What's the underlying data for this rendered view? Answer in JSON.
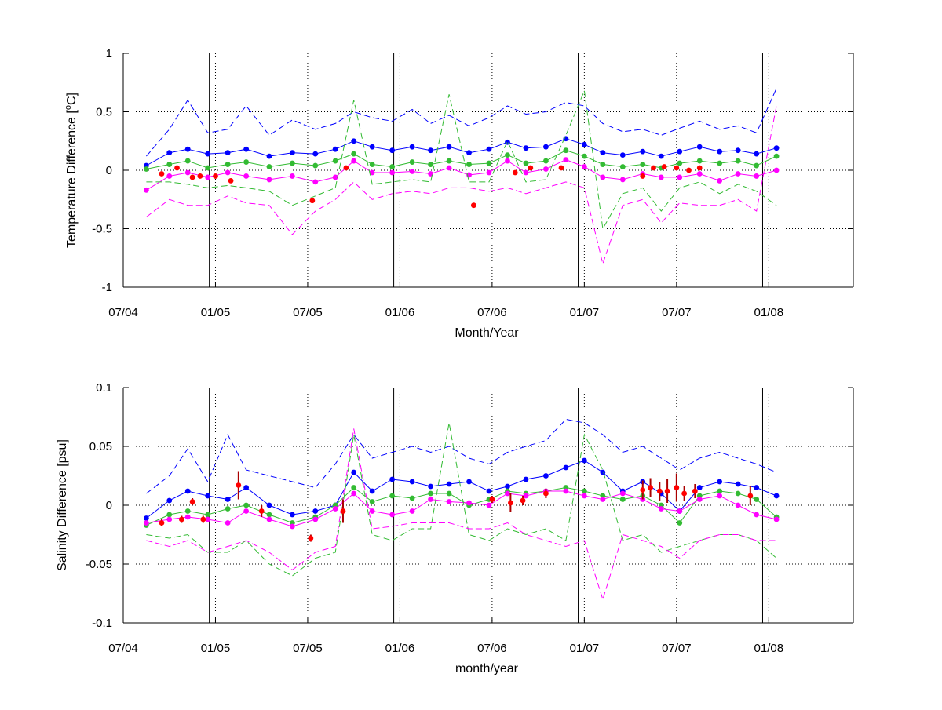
{
  "chart_data": [
    {
      "type": "line",
      "ylabel_main": "Temperature Difference [",
      "ylabel_sup": "o",
      "ylabel_tail": "C]",
      "xlabel": "Month/Year",
      "ylim": [
        -1,
        1
      ],
      "yticks": [
        1,
        0.5,
        0,
        -0.5,
        -1
      ],
      "ytick_labels": [
        "1",
        "0.5",
        "0",
        "-0.5",
        "-1"
      ],
      "xlim": [
        0,
        47.5
      ],
      "xticks": [
        0,
        6,
        12,
        18,
        24,
        30,
        36,
        42
      ],
      "xtick_labels": [
        "07/04",
        "01/05",
        "07/05",
        "01/06",
        "07/06",
        "01/07",
        "07/07",
        "01/08"
      ],
      "vlines": [
        5.6,
        17.6,
        29.6,
        41.6
      ],
      "grid": true,
      "series": [
        {
          "color": "#0000ff",
          "style": "markers-line",
          "x": [
            1.5,
            3,
            4.2,
            5.5,
            6.8,
            8,
            9.5,
            11,
            12.5,
            13.8,
            15,
            16.2,
            17.5,
            18.8,
            20,
            21.2,
            22.5,
            23.8,
            25,
            26.2,
            27.5,
            28.8,
            30,
            31.2,
            32.5,
            33.8,
            35,
            36.2,
            37.5,
            38.8,
            40,
            41.2,
            42.5
          ],
          "y": [
            0.04,
            0.15,
            0.18,
            0.14,
            0.15,
            0.18,
            0.12,
            0.15,
            0.14,
            0.18,
            0.25,
            0.2,
            0.17,
            0.2,
            0.17,
            0.2,
            0.15,
            0.18,
            0.24,
            0.19,
            0.2,
            0.27,
            0.22,
            0.15,
            0.13,
            0.16,
            0.12,
            0.16,
            0.2,
            0.16,
            0.17,
            0.14,
            0.19
          ]
        },
        {
          "color": "#33bb33",
          "style": "markers-line",
          "x": [
            1.5,
            3,
            4.2,
            5.5,
            6.8,
            8,
            9.5,
            11,
            12.5,
            13.8,
            15,
            16.2,
            17.5,
            18.8,
            20,
            21.2,
            22.5,
            23.8,
            25,
            26.2,
            27.5,
            28.8,
            30,
            31.2,
            32.5,
            33.8,
            35,
            36.2,
            37.5,
            38.8,
            40,
            41.2,
            42.5
          ],
          "y": [
            0.01,
            0.05,
            0.08,
            0.02,
            0.05,
            0.07,
            0.03,
            0.06,
            0.04,
            0.08,
            0.14,
            0.05,
            0.03,
            0.07,
            0.05,
            0.08,
            0.05,
            0.06,
            0.13,
            0.06,
            0.08,
            0.17,
            0.12,
            0.05,
            0.03,
            0.05,
            0.02,
            0.06,
            0.08,
            0.06,
            0.08,
            0.04,
            0.12
          ]
        },
        {
          "color": "#ff00ff",
          "style": "markers-line",
          "x": [
            1.5,
            3,
            4.2,
            5.5,
            6.8,
            8,
            9.5,
            11,
            12.5,
            13.8,
            15,
            16.2,
            17.5,
            18.8,
            20,
            21.2,
            22.5,
            23.8,
            25,
            26.2,
            27.5,
            28.8,
            30,
            31.2,
            32.5,
            33.8,
            35,
            36.2,
            37.5,
            38.8,
            40,
            41.2,
            42.5
          ],
          "y": [
            -0.17,
            -0.05,
            -0.02,
            -0.06,
            -0.02,
            -0.05,
            -0.08,
            -0.05,
            -0.1,
            -0.06,
            0.08,
            -0.02,
            -0.02,
            -0.01,
            -0.03,
            0.02,
            -0.04,
            -0.02,
            0.08,
            -0.02,
            0.01,
            0.09,
            0.03,
            -0.06,
            -0.08,
            -0.03,
            -0.06,
            -0.06,
            -0.03,
            -0.09,
            -0.03,
            -0.05,
            0.0
          ]
        },
        {
          "color": "#0000ff",
          "style": "dashed",
          "x": [
            1.5,
            3,
            4.2,
            5.5,
            6.8,
            8,
            9.5,
            11,
            12.5,
            13.8,
            15,
            16.2,
            17.5,
            18.8,
            20,
            21.2,
            22.5,
            23.8,
            25,
            26.2,
            27.5,
            28.8,
            30,
            31.2,
            32.5,
            33.8,
            35,
            36.2,
            37.5,
            38.8,
            40,
            41.2,
            42.5
          ],
          "y": [
            0.12,
            0.35,
            0.6,
            0.32,
            0.35,
            0.55,
            0.3,
            0.43,
            0.35,
            0.4,
            0.5,
            0.45,
            0.42,
            0.52,
            0.4,
            0.47,
            0.38,
            0.45,
            0.55,
            0.48,
            0.5,
            0.58,
            0.55,
            0.4,
            0.33,
            0.35,
            0.3,
            0.36,
            0.42,
            0.35,
            0.38,
            0.32,
            0.7
          ]
        },
        {
          "color": "#33bb33",
          "style": "dashed",
          "x": [
            1.5,
            3,
            4.2,
            5.5,
            6.8,
            8,
            9.5,
            11,
            12.5,
            13.8,
            15,
            16.2,
            17.5,
            18.8,
            20,
            21.2,
            22.5,
            23.8,
            25,
            26.2,
            27.5,
            28.8,
            30,
            31.2,
            32.5,
            33.8,
            35,
            36.2,
            37.5,
            38.8,
            40,
            41.2,
            42.5
          ],
          "y": [
            -0.1,
            -0.1,
            -0.12,
            -0.15,
            -0.13,
            -0.15,
            -0.18,
            -0.3,
            -0.22,
            -0.15,
            0.6,
            -0.12,
            -0.1,
            -0.08,
            -0.1,
            0.65,
            -0.1,
            -0.1,
            0.25,
            -0.1,
            -0.08,
            0.3,
            0.68,
            -0.5,
            -0.2,
            -0.15,
            -0.35,
            -0.15,
            -0.1,
            -0.2,
            -0.12,
            -0.18,
            -0.3
          ]
        },
        {
          "color": "#ff00ff",
          "style": "dashed",
          "x": [
            1.5,
            3,
            4.2,
            5.5,
            6.8,
            8,
            9.5,
            11,
            12.5,
            13.8,
            15,
            16.2,
            17.5,
            18.8,
            20,
            21.2,
            22.5,
            23.8,
            25,
            26.2,
            27.5,
            28.8,
            30,
            31.2,
            32.5,
            33.8,
            35,
            36.2,
            37.5,
            38.8,
            40,
            41.2,
            42.5
          ],
          "y": [
            -0.4,
            -0.25,
            -0.3,
            -0.3,
            -0.22,
            -0.28,
            -0.3,
            -0.55,
            -0.35,
            -0.25,
            -0.1,
            -0.25,
            -0.2,
            -0.18,
            -0.2,
            -0.15,
            -0.15,
            -0.18,
            -0.15,
            -0.2,
            -0.15,
            -0.1,
            -0.15,
            -0.8,
            -0.3,
            -0.25,
            -0.45,
            -0.28,
            -0.3,
            -0.3,
            -0.25,
            -0.35,
            0.55
          ]
        },
        {
          "color": "#ff0000",
          "style": "points",
          "x": [
            2.5,
            3.5,
            4.5,
            5,
            6,
            7,
            12.3,
            14.5,
            22.8,
            25.5,
            26.5,
            28.5,
            33.8,
            34.5,
            35.2,
            36,
            36.8,
            37.5
          ],
          "y": [
            -0.03,
            0.02,
            -0.06,
            -0.05,
            -0.05,
            -0.09,
            -0.26,
            0.02,
            -0.3,
            -0.02,
            0.02,
            0.02,
            -0.05,
            0.02,
            0.03,
            0.02,
            0.0,
            0.02
          ]
        }
      ]
    },
    {
      "type": "line",
      "ylabel": "Salinity Difference [psu]",
      "xlabel": "month/year",
      "ylim": [
        -0.1,
        0.1
      ],
      "yticks": [
        0.1,
        0.05,
        0,
        -0.05,
        -0.1
      ],
      "ytick_labels": [
        "0.1",
        "0.05",
        "0",
        "-0.05",
        "-0.1"
      ],
      "xlim": [
        0,
        47.5
      ],
      "xticks": [
        0,
        6,
        12,
        18,
        24,
        30,
        36,
        42
      ],
      "xtick_labels": [
        "07/04",
        "01/05",
        "07/05",
        "01/06",
        "07/06",
        "01/07",
        "07/07",
        "01/08"
      ],
      "vlines": [
        5.6,
        17.6,
        29.6,
        41.6
      ],
      "grid": true,
      "series": [
        {
          "color": "#0000ff",
          "style": "markers-line",
          "x": [
            1.5,
            3,
            4.2,
            5.5,
            6.8,
            8,
            9.5,
            11,
            12.5,
            13.8,
            15,
            16.2,
            17.5,
            18.8,
            20,
            21.2,
            22.5,
            23.8,
            25,
            26.2,
            27.5,
            28.8,
            30,
            31.2,
            32.5,
            33.8,
            35,
            36.2,
            37.5,
            38.8,
            40,
            41.2,
            42.5
          ],
          "y": [
            -0.011,
            0.004,
            0.012,
            0.008,
            0.005,
            0.015,
            0.0,
            -0.008,
            -0.005,
            0.0,
            0.028,
            0.012,
            0.022,
            0.02,
            0.016,
            0.018,
            0.02,
            0.012,
            0.016,
            0.022,
            0.025,
            0.032,
            0.038,
            0.028,
            0.012,
            0.02,
            0.01,
            -0.005,
            0.015,
            0.02,
            0.018,
            0.015,
            0.008
          ]
        },
        {
          "color": "#33bb33",
          "style": "markers-line",
          "x": [
            1.5,
            3,
            4.2,
            5.5,
            6.8,
            8,
            9.5,
            11,
            12.5,
            13.8,
            15,
            16.2,
            17.5,
            18.8,
            20,
            21.2,
            22.5,
            23.8,
            25,
            26.2,
            27.5,
            28.8,
            30,
            31.2,
            32.5,
            33.8,
            35,
            36.2,
            37.5,
            38.8,
            40,
            41.2,
            42.5
          ],
          "y": [
            -0.017,
            -0.008,
            -0.005,
            -0.008,
            -0.003,
            0.0,
            -0.008,
            -0.015,
            -0.01,
            0.0,
            0.015,
            0.003,
            0.008,
            0.006,
            0.01,
            0.01,
            0.0,
            0.005,
            0.012,
            0.01,
            0.012,
            0.015,
            0.012,
            0.008,
            0.005,
            0.008,
            0.0,
            -0.015,
            0.008,
            0.012,
            0.01,
            0.005,
            -0.01
          ]
        },
        {
          "color": "#ff00ff",
          "style": "markers-line",
          "x": [
            1.5,
            3,
            4.2,
            5.5,
            6.8,
            8,
            9.5,
            11,
            12.5,
            13.8,
            15,
            16.2,
            17.5,
            18.8,
            20,
            21.2,
            22.5,
            23.8,
            25,
            26.2,
            27.5,
            28.8,
            30,
            31.2,
            32.5,
            33.8,
            35,
            36.2,
            37.5,
            38.8,
            40,
            41.2,
            42.5
          ],
          "y": [
            -0.015,
            -0.012,
            -0.01,
            -0.012,
            -0.015,
            -0.005,
            -0.012,
            -0.018,
            -0.012,
            -0.003,
            0.01,
            -0.005,
            -0.008,
            -0.005,
            0.005,
            0.003,
            0.002,
            0.0,
            0.01,
            0.008,
            0.012,
            0.012,
            0.008,
            0.005,
            0.01,
            0.005,
            -0.003,
            -0.005,
            0.005,
            0.008,
            0.0,
            -0.008,
            -0.012
          ]
        },
        {
          "color": "#0000ff",
          "style": "dashed",
          "x": [
            1.5,
            3,
            4.2,
            5.5,
            6.8,
            8,
            9.5,
            11,
            12.5,
            13.8,
            15,
            16.2,
            17.5,
            18.8,
            20,
            21.2,
            22.5,
            23.8,
            25,
            26.2,
            27.5,
            28.8,
            30,
            31.2,
            32.5,
            33.8,
            35,
            36.2,
            37.5,
            38.8,
            40,
            41.2,
            42.5
          ],
          "y": [
            0.01,
            0.025,
            0.048,
            0.02,
            0.06,
            0.03,
            0.025,
            0.02,
            0.015,
            0.035,
            0.06,
            0.04,
            0.045,
            0.05,
            0.045,
            0.05,
            0.04,
            0.035,
            0.045,
            0.05,
            0.055,
            0.073,
            0.07,
            0.06,
            0.045,
            0.05,
            0.04,
            0.03,
            0.04,
            0.045,
            0.04,
            0.035,
            0.028
          ]
        },
        {
          "color": "#33bb33",
          "style": "dashed",
          "x": [
            1.5,
            3,
            4.2,
            5.5,
            6.8,
            8,
            9.5,
            11,
            12.5,
            13.8,
            15,
            16.2,
            17.5,
            18.8,
            20,
            21.2,
            22.5,
            23.8,
            25,
            26.2,
            27.5,
            28.8,
            30,
            31.2,
            32.5,
            33.8,
            35,
            36.2,
            37.5,
            38.8,
            40,
            41.2,
            42.5
          ],
          "y": [
            -0.025,
            -0.028,
            -0.025,
            -0.04,
            -0.04,
            -0.03,
            -0.05,
            -0.06,
            -0.045,
            -0.04,
            0.06,
            -0.025,
            -0.03,
            -0.02,
            -0.02,
            0.07,
            -0.025,
            -0.03,
            -0.02,
            -0.025,
            -0.02,
            -0.03,
            0.06,
            0.03,
            -0.03,
            -0.025,
            -0.04,
            -0.035,
            -0.03,
            -0.025,
            -0.025,
            -0.03,
            -0.045
          ]
        },
        {
          "color": "#ff00ff",
          "style": "dashed",
          "x": [
            1.5,
            3,
            4.2,
            5.5,
            6.8,
            8,
            9.5,
            11,
            12.5,
            13.8,
            15,
            16.2,
            17.5,
            18.8,
            20,
            21.2,
            22.5,
            23.8,
            25,
            26.2,
            27.5,
            28.8,
            30,
            31.2,
            32.5,
            33.8,
            35,
            36.2,
            37.5,
            38.8,
            40,
            41.2,
            42.5
          ],
          "y": [
            -0.03,
            -0.035,
            -0.03,
            -0.04,
            -0.035,
            -0.03,
            -0.04,
            -0.055,
            -0.04,
            -0.035,
            0.065,
            -0.02,
            -0.018,
            -0.015,
            -0.015,
            -0.015,
            -0.02,
            -0.02,
            -0.015,
            -0.025,
            -0.03,
            -0.035,
            -0.03,
            -0.08,
            -0.025,
            -0.03,
            -0.035,
            -0.045,
            -0.03,
            -0.025,
            -0.025,
            -0.03,
            -0.03
          ]
        },
        {
          "color": "#ff0000",
          "style": "points-err",
          "x": [
            2.5,
            3.8,
            4.5,
            5.2,
            7.5,
            9,
            12.2,
            14.3,
            24,
            25.2,
            26,
            27.5,
            33.8,
            34.3,
            34.9,
            35.4,
            36,
            36.5,
            37.2,
            40.8
          ],
          "y": [
            -0.015,
            -0.012,
            0.003,
            -0.012,
            0.017,
            -0.005,
            -0.028,
            -0.005,
            0.005,
            0.002,
            0.004,
            0.01,
            0.013,
            0.015,
            0.012,
            0.012,
            0.015,
            0.01,
            0.012,
            0.008
          ],
          "err": [
            0.003,
            0.003,
            0.003,
            0.003,
            0.012,
            0.005,
            0.003,
            0.01,
            0.003,
            0.008,
            0.004,
            0.004,
            0.008,
            0.008,
            0.008,
            0.01,
            0.012,
            0.006,
            0.006,
            0.008
          ]
        }
      ]
    }
  ]
}
